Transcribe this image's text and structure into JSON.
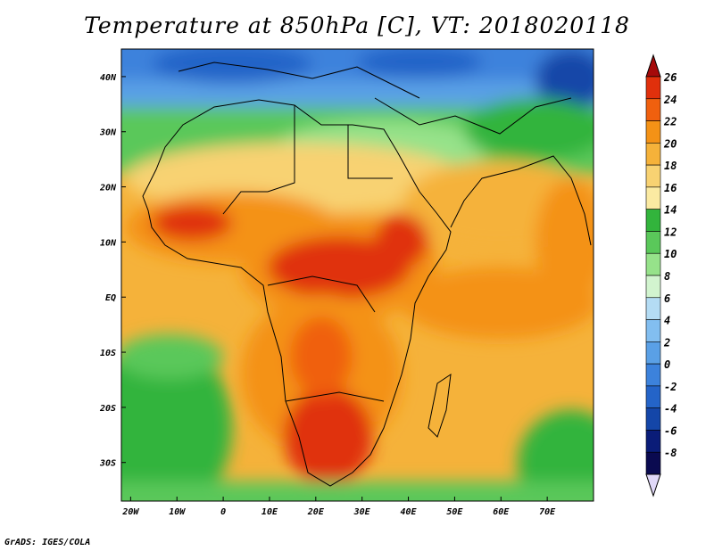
{
  "title": "Temperature at 850hPa [C], VT: 2018020118",
  "footer": "GrADS: IGES/COLA",
  "map": {
    "lon_range": [
      -22,
      80
    ],
    "lat_range": [
      -37,
      45
    ],
    "lon_ticks": [
      "20W",
      "10W",
      "0",
      "10E",
      "20E",
      "30E",
      "40E",
      "50E",
      "60E",
      "70E"
    ],
    "lat_ticks": [
      "40N",
      "30N",
      "20N",
      "10N",
      "EQ",
      "10S",
      "20S",
      "30S"
    ]
  },
  "colorbar": {
    "labels": [
      "26",
      "24",
      "22",
      "20",
      "18",
      "16",
      "14",
      "12",
      "10",
      "8",
      "6",
      "4",
      "2",
      "0",
      "-2",
      "-4",
      "-6",
      "-8"
    ],
    "colors": [
      "#a50a0a",
      "#e0300c",
      "#f0600e",
      "#f49216",
      "#f5b23a",
      "#f8d272",
      "#fbeaa2",
      "#32b43c",
      "#5ac85a",
      "#96e28a",
      "#d2f4cf",
      "#b4dcf4",
      "#82bef0",
      "#5aa0e6",
      "#3c82dc",
      "#2464c8",
      "#1446a8",
      "#0a1c78",
      "#0a0a50",
      "#e0d8f8"
    ]
  },
  "chart_data": {
    "type": "heatmap",
    "variable": "Temperature at 850hPa [C]",
    "valid_time": "2018020118",
    "x_range": [
      -22,
      80
    ],
    "y_range": [
      -37,
      45
    ],
    "scale_labels": [
      26,
      24,
      22,
      20,
      18,
      16,
      14,
      12,
      10,
      8,
      6,
      4,
      2,
      0,
      -2,
      -4,
      -6,
      -8
    ]
  }
}
